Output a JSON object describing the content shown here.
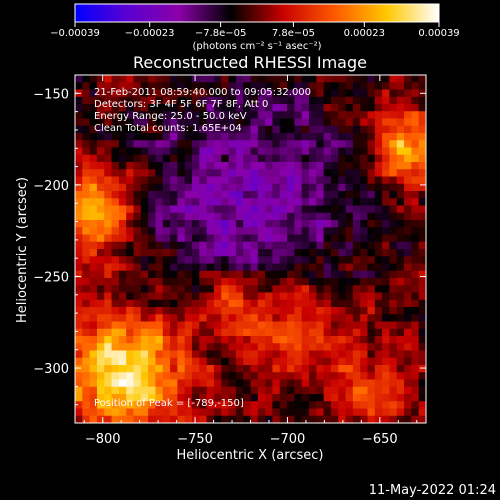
{
  "chart_data": {
    "type": "heatmap",
    "title": "Reconstructed RHESSI Image",
    "xlabel": "Heliocentric X (arcsec)",
    "ylabel": "Heliocentric Y (arcsec)",
    "xlim": [
      -815,
      -625
    ],
    "ylim": [
      -330,
      -140
    ],
    "x_ticks": [
      -800,
      -750,
      -700,
      -650
    ],
    "y_ticks": [
      -150,
      -200,
      -250,
      -300
    ],
    "x_tick_labels": [
      "−800",
      "−750",
      "−700",
      "−650"
    ],
    "y_tick_labels": [
      "−150",
      "−200",
      "−250",
      "−300"
    ],
    "colorbar": {
      "colormap": "bipolar blue-purple-red-yellow-white",
      "range": [
        -0.00039,
        0.00039
      ],
      "ticks": [
        -0.00039,
        -0.00023,
        -7.8e-05,
        7.8e-05,
        0.00023,
        0.00039
      ],
      "tick_labels": [
        "−0.00039",
        "−0.00023",
        "−7.8e−05",
        "7.8e−05",
        "0.00023",
        "0.00039"
      ],
      "unit_label": "(photons cm⁻² s⁻¹ asec⁻²)",
      "colors": [
        "#0000ff",
        "#5a00d2",
        "#8a00a8",
        "#000000",
        "#c80000",
        "#ff5a00",
        "#ffc800",
        "#ffffff"
      ]
    },
    "info_lines": [
      "21-Feb-2011 08:59:40.000 to 09:05:32.000",
      "Detectors: 3F 4F 5F 6F 7F 8F, Att 0",
      "Energy Range: 25.0 - 50.0 keV",
      "Clean    Total counts: 1.65E+04"
    ],
    "peak_label": "Position of Peak = [-789,-150]",
    "peak_position": [
      -789,
      -150
    ],
    "total_counts": 16500,
    "energy_range_keV": [
      25.0,
      50.0
    ],
    "grid": false,
    "legend": "none"
  },
  "footer": {
    "date": "11-May-2022 01:24"
  }
}
